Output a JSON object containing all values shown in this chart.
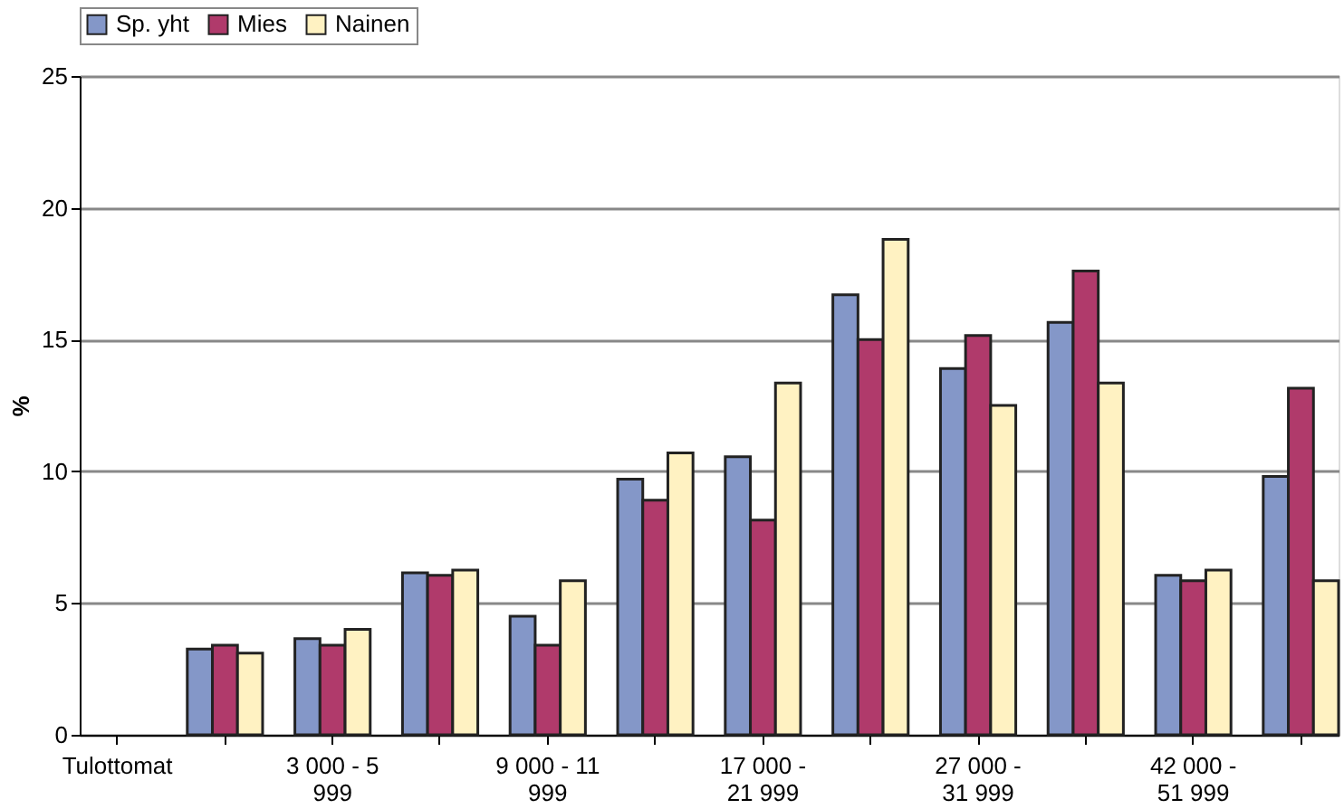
{
  "chart_data": {
    "type": "bar",
    "ylabel": "%",
    "categories": [
      "Tulottomat",
      null,
      "3 000 - 5 999",
      null,
      "9 000 - 11 999",
      null,
      "17 000 - 21 999",
      null,
      "27 000 - 31 999",
      null,
      "42 000 - 51 999",
      null
    ],
    "series": [
      {
        "name": "Sp. yht",
        "color": "#8497c8",
        "values": [
          null,
          3.25,
          3.65,
          6.15,
          4.5,
          9.7,
          10.55,
          16.7,
          13.9,
          15.65,
          6.05,
          9.8
        ]
      },
      {
        "name": "Mies",
        "color": "#b03a6b",
        "values": [
          null,
          3.4,
          3.4,
          6.05,
          3.4,
          8.9,
          8.15,
          15.0,
          15.15,
          17.6,
          5.85,
          13.15
        ]
      },
      {
        "name": "Nainen",
        "color": "#fff2c2",
        "values": [
          null,
          3.1,
          4.0,
          6.25,
          5.85,
          10.7,
          13.35,
          18.8,
          12.5,
          13.35,
          6.25,
          5.85
        ]
      }
    ],
    "ylim": [
      0,
      25
    ],
    "yticks": [
      0,
      5,
      10,
      15,
      20,
      25
    ],
    "grid": "y",
    "legend": "top"
  }
}
